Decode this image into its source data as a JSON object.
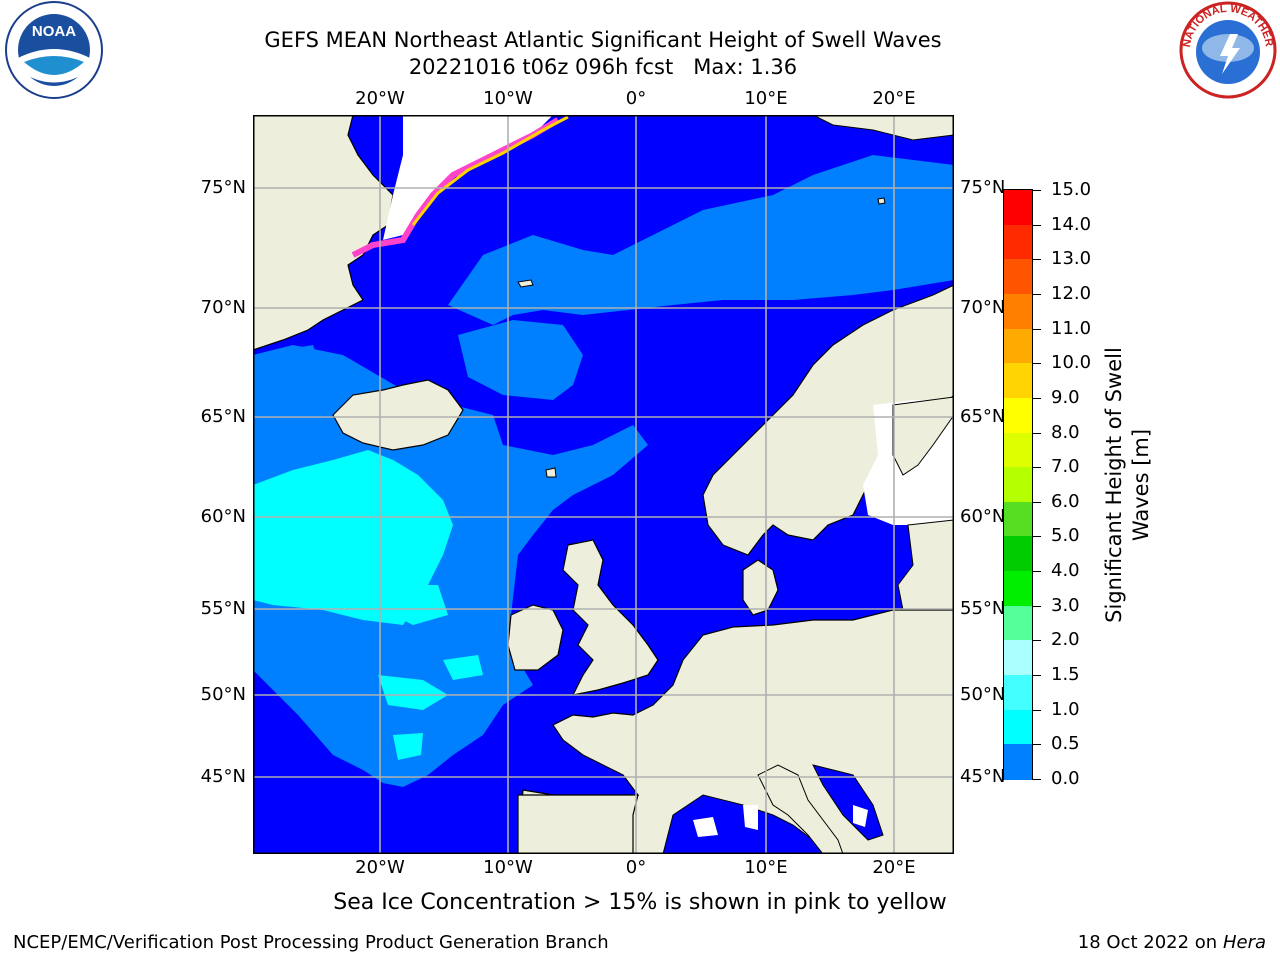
{
  "title": {
    "line1": "GEFS MEAN Northeast Atlantic Significant Height of Swell Waves",
    "line2": "20221016 t06z 096h fcst   Max: 1.36"
  },
  "map": {
    "lon_labels": [
      "20°W",
      "10°W",
      "0°",
      "10°E",
      "20°E"
    ],
    "lat_labels": [
      "75°N",
      "70°N",
      "65°N",
      "60°N",
      "55°N",
      "50°N",
      "45°N"
    ],
    "colors": {
      "ocean_0_05": "#0000ff",
      "swell_05_10": "#0080ff",
      "swell_10_15": "#00ffff",
      "land": "#eeeedd",
      "no_data": "#ffffff",
      "gridline": "#b0b0b0",
      "ice_pink": "#ff44cc",
      "ice_yellow": "#ffd400"
    }
  },
  "colorbar": {
    "label": "Significant Height of Swell Waves [m]",
    "ticks": [
      "15.0",
      "14.0",
      "13.0",
      "12.0",
      "11.0",
      "10.0",
      "9.0",
      "8.0",
      "7.0",
      "6.0",
      "5.0",
      "4.0",
      "3.0",
      "2.0",
      "1.5",
      "1.0",
      "0.5",
      "0.0"
    ],
    "colors": [
      "#ff0000",
      "#ff2a00",
      "#ff5500",
      "#ff8000",
      "#ffaa00",
      "#ffd400",
      "#ffff00",
      "#ddff00",
      "#b4ff00",
      "#55dd22",
      "#00cc00",
      "#00ee00",
      "#55ff99",
      "#aaffff",
      "#44ffff",
      "#00ffff",
      "#0080ff",
      "#0000ff"
    ]
  },
  "ice_note": "Sea Ice Concentration > 15% is shown in pink to yellow",
  "footer": {
    "left": "NCEP/EMC/Verification Post Processing Product Generation Branch",
    "date": "18 Oct 2022 on ",
    "host": "Hera"
  },
  "logos": {
    "noaa_text": "NOAA",
    "nws_text": "NATIONAL WEATHER SERVICE"
  }
}
